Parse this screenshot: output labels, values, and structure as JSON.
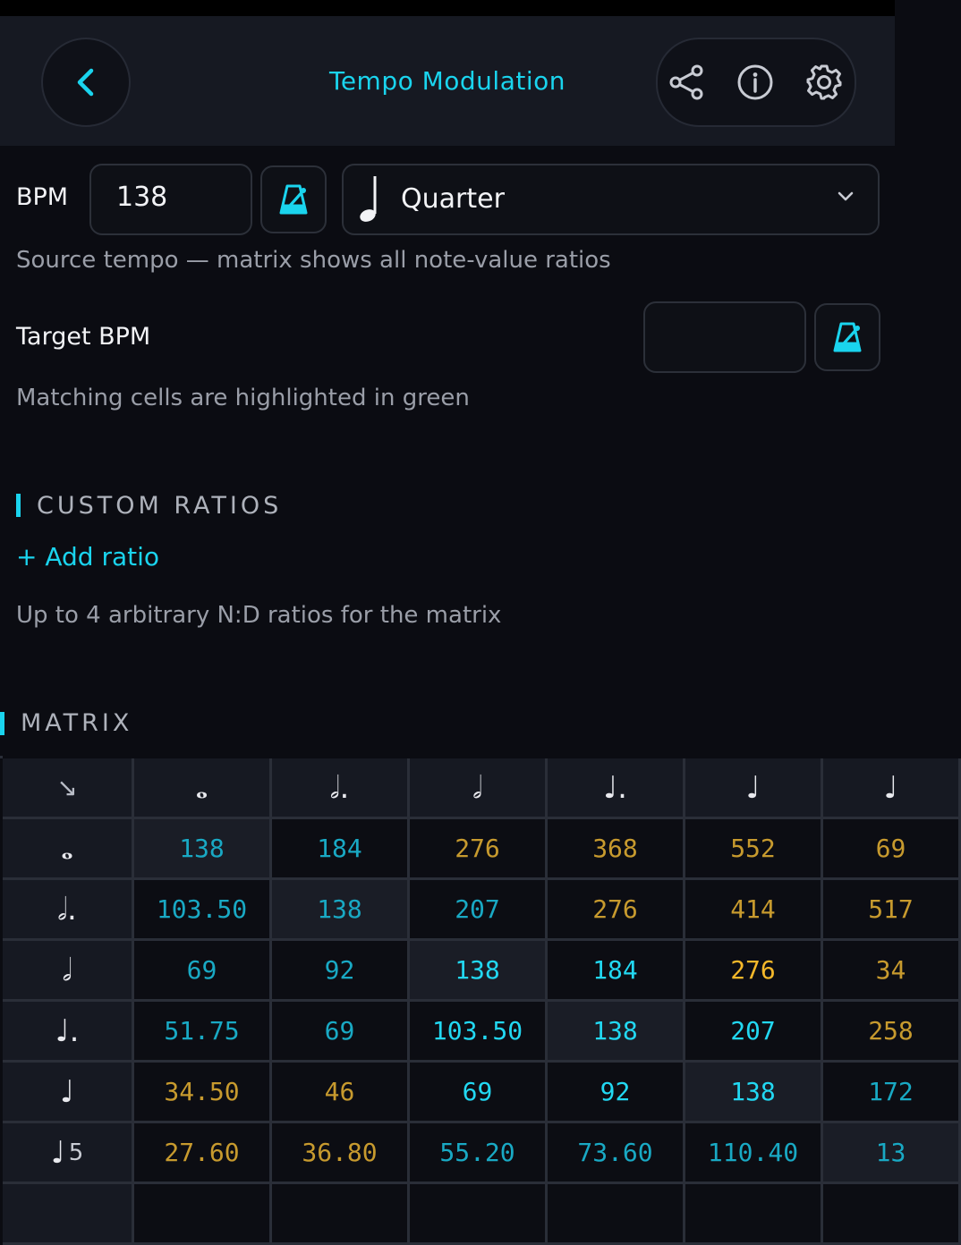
{
  "header": {
    "title": "Tempo Modulation"
  },
  "source": {
    "bpm_label": "BPM",
    "bpm_value": "138",
    "note_value": "Quarter",
    "hint": "Source tempo — matrix shows all note-value ratios"
  },
  "target": {
    "label": "Target BPM",
    "value": "",
    "hint": "Matching cells are highlighted in green"
  },
  "custom_ratios": {
    "title": "CUSTOM RATIOS",
    "add_label": "+ Add ratio",
    "hint": "Up to 4 arbitrary N:D ratios for the matrix"
  },
  "matrix": {
    "title": "MATRIX",
    "corner_glyph": "↘",
    "col_headers": [
      "𝅝",
      "𝅗𝅥.",
      "𝅗𝅥",
      "♩.",
      "♩",
      "♩"
    ],
    "row_headers": [
      {
        "glyph": "𝅝",
        "tuplet": ""
      },
      {
        "glyph": "𝅗𝅥.",
        "tuplet": ""
      },
      {
        "glyph": "𝅗𝅥",
        "tuplet": ""
      },
      {
        "glyph": "♩.",
        "tuplet": ""
      },
      {
        "glyph": "♩",
        "tuplet": ""
      },
      {
        "glyph": "♩",
        "tuplet": "5"
      }
    ],
    "rows": [
      [
        "138",
        "184",
        "276",
        "368",
        "552",
        "69"
      ],
      [
        "103.50",
        "138",
        "207",
        "276",
        "414",
        "517"
      ],
      [
        "69",
        "92",
        "138",
        "184",
        "276",
        "34"
      ],
      [
        "51.75",
        "69",
        "103.50",
        "138",
        "207",
        "258"
      ],
      [
        "34.50",
        "46",
        "69",
        "92",
        "138",
        "172"
      ],
      [
        "27.60",
        "36.80",
        "55.20",
        "73.60",
        "110.40",
        "13"
      ]
    ],
    "colors": [
      [
        "#19a9c4",
        "#19a9c4",
        "#c79a2e",
        "#c79a2e",
        "#c79a2e",
        "#c79a2e"
      ],
      [
        "#19a9c4",
        "#19a9c4",
        "#19a9c4",
        "#c79a2e",
        "#c79a2e",
        "#c79a2e"
      ],
      [
        "#19a9c4",
        "#19a9c4",
        "#22d8f2",
        "#22d8f2",
        "#f5b82a",
        "#c79a2e"
      ],
      [
        "#19a9c4",
        "#19a9c4",
        "#22d8f2",
        "#22d8f2",
        "#22d8f2",
        "#c79a2e"
      ],
      [
        "#c79a2e",
        "#c79a2e",
        "#22d8f2",
        "#22d8f2",
        "#22d8f2",
        "#19a9c4"
      ],
      [
        "#c79a2e",
        "#c79a2e",
        "#19a9c4",
        "#19a9c4",
        "#19a9c4",
        "#19a9c4"
      ]
    ]
  },
  "colors": {
    "accent": "#1ad4ee",
    "background": "#0b0c12",
    "header": "#161922"
  }
}
